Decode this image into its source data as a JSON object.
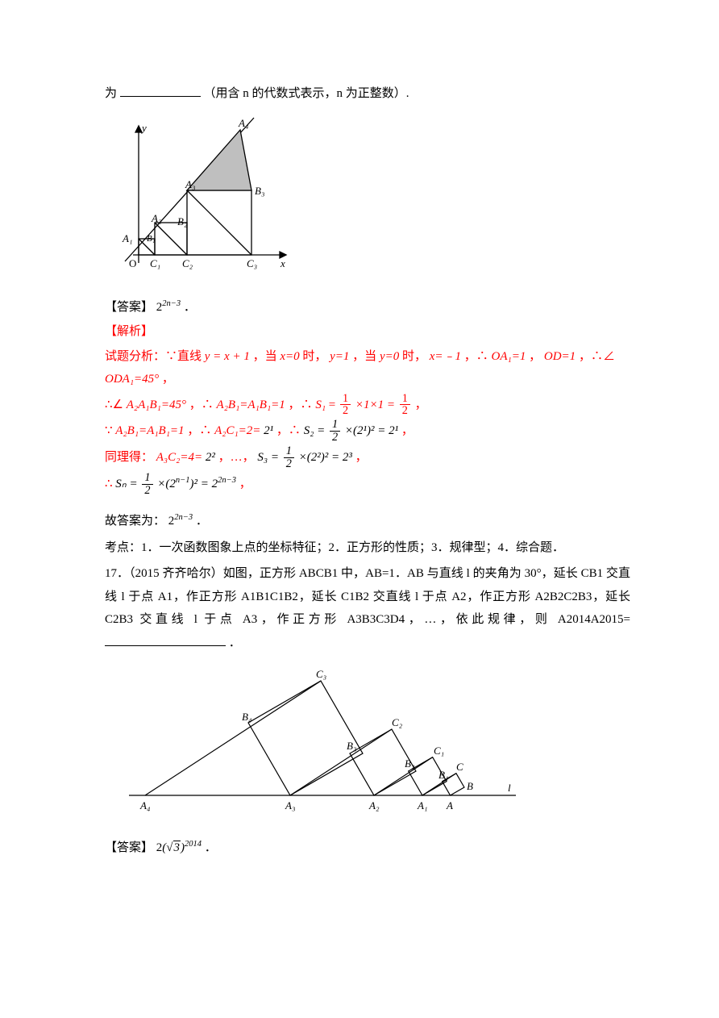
{
  "intro_line": {
    "prefix": "为",
    "suffix": "（用含 n 的代数式表示，n 为正整数）."
  },
  "figure1": {
    "stroke": "#000000",
    "fill": "#ffffff",
    "shade_fill": "#bfbfbf",
    "font_family": "Times New Roman",
    "label_fontsize": 13,
    "labels": {
      "y": "y",
      "x": "x",
      "O": "O",
      "A1": "A₁",
      "A2": "A₂",
      "A3": "A₃",
      "A4": "A₄",
      "B1": "B₁",
      "B2": "B₂",
      "B3": "B₃",
      "C1": "C₁",
      "C2": "C₂",
      "C3": "C₃"
    }
  },
  "answer1": {
    "label": "【答案】",
    "value_base": "2",
    "value_exp": "2n−3",
    "suffix": "．"
  },
  "analysis_label": "【解析】",
  "line_intro": {
    "p1": "试题分析：∵直线 ",
    "eq": "y = x + 1",
    "p2": "，当 ",
    "x0": "x=0",
    "p3": " 时，",
    "y1": "y=1",
    "p4": "，当 ",
    "y0": "y=0",
    "p5": " 时，",
    "xm1": "x=﹣1",
    "p6": "，∴",
    "oa1": "OA₁=1",
    "p7": "，",
    "od": "OD=1",
    "p8": "，∴∠",
    "oda1": "ODA₁=45°",
    "p9": "，"
  },
  "calc1": {
    "p1": "∴∠",
    "ang": "A₂A₁B₁=45°",
    "p2": "，∴",
    "eq1": "A₂B₁=A₁B₁=1",
    "p3": "，∴ ",
    "S1": "S₁",
    "eq_sign": " = ",
    "half": {
      "n": "1",
      "d": "2"
    },
    "mul1": "×1×1 = ",
    "half2": {
      "n": "1",
      "d": "2"
    },
    "p4": " ，"
  },
  "calc2": {
    "p1": "∵",
    "eq1": "A₂B₁=A₁B₁=1",
    "p2": "，∴",
    "eq2": "A₂C₁=2= ",
    "pw": "2¹",
    "p3": " ，∴ ",
    "S2": "S₂",
    "eq_sign": " = ",
    "half": {
      "n": "1",
      "d": "2"
    },
    "mul": "×(2¹)² = 2¹",
    "p4": " ，"
  },
  "calc3": {
    "p1": "同理得：",
    "eq1": "A₃C₂=4= ",
    "pw": "2²",
    "p2": " ，…，",
    "S3": "S₃",
    "eq_sign": " = ",
    "half": {
      "n": "1",
      "d": "2"
    },
    "mul": "×(2²)² = 2³",
    "p3": " ，"
  },
  "calc4": {
    "p1": "∴ ",
    "Sn": "Sₙ",
    "eq_sign": " = ",
    "half": {
      "n": "1",
      "d": "2"
    },
    "mul_a": "×(2",
    "exp1": "n−1",
    "mul_b": ")² = 2",
    "exp2": "2n−3",
    "p2": " ，"
  },
  "concl": {
    "p1": "故答案为：",
    "base": "2",
    "exp": "2n−3",
    "p2": "．"
  },
  "kaodian": "考点：1．一次函数图象上点的坐标特征；2．正方形的性质；3．规律型；4．综合题．",
  "q17": {
    "text": "17．（2015 齐齐哈尔）如图，正方形 ABCB1 中，AB=1．AB 与直线 l 的夹角为 30°，延长 CB1 交直线 l 于点 A1，作正方形 A1B1C1B2，延长 C1B2 交直线 l 于点 A2，作正方形 A2B2C2B3，延长 C2B3 交直线 l 于点 A3，作正方形 A3B3C3D4，…，依此规律，则 A2014A2015=",
    "suffix": "．"
  },
  "figure2": {
    "stroke": "#000000",
    "font_family": "Times New Roman",
    "label_fontsize": 13,
    "labels": {
      "l": "l",
      "A": "A",
      "B": "B",
      "C": "C",
      "A1": "A₁",
      "B1": "B₁",
      "C1": "C₁",
      "A2": "A₂",
      "B2": "B₂",
      "C2": "C₂",
      "A3": "A₃",
      "B3": "B₃",
      "C3": "C₃",
      "A4": "A₄",
      "B4": "B₄"
    }
  },
  "answer2": {
    "label": "【答案】",
    "two": "2",
    "sqrt": "√3",
    "exp": "2014",
    "suffix": "．"
  }
}
